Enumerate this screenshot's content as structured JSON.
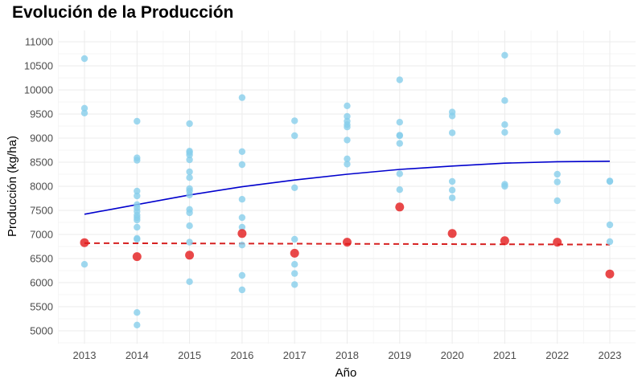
{
  "chart_data": {
    "type": "scatter",
    "title": "Evolución de la Producción",
    "xlabel": "Año",
    "ylabel": "Producción (kg/ha)",
    "xlim": [
      2012.5,
      2023.5
    ],
    "ylim": [
      4700,
      11250
    ],
    "x_ticks": [
      "2013",
      "2014",
      "2015",
      "2016",
      "2017",
      "2018",
      "2019",
      "2020",
      "2021",
      "2022",
      "2023"
    ],
    "y_ticks": [
      "5000",
      "5500",
      "6000",
      "6500",
      "7000",
      "7500",
      "8000",
      "8500",
      "9000",
      "9500",
      "10000",
      "10500",
      "11000"
    ],
    "grid": true,
    "colors": {
      "points": "#87ceeb",
      "highlight": "#e41a1c",
      "trend": "#0000cd",
      "highlight_trend": "#d62020"
    },
    "points": [
      {
        "year": 2013,
        "values": [
          10650,
          9620,
          9520,
          6380
        ]
      },
      {
        "year": 2014,
        "values": [
          9350,
          8590,
          8540,
          7900,
          7800,
          7620,
          7550,
          7480,
          7400,
          7350,
          7300,
          7150,
          6920,
          6900,
          5380,
          5120
        ]
      },
      {
        "year": 2015,
        "values": [
          9300,
          8730,
          8700,
          8650,
          8550,
          8300,
          8180,
          7950,
          7900,
          7820,
          7520,
          7450,
          7180,
          6840,
          6020
        ]
      },
      {
        "year": 2016,
        "values": [
          9840,
          8720,
          8450,
          7730,
          7350,
          7150,
          6780,
          6150,
          5850
        ]
      },
      {
        "year": 2017,
        "values": [
          9360,
          9050,
          7970,
          6900,
          6380,
          6190,
          5960
        ]
      },
      {
        "year": 2018,
        "values": [
          9670,
          9450,
          9350,
          9280,
          9230,
          8960,
          8570,
          8460
        ]
      },
      {
        "year": 2019,
        "values": [
          10210,
          9330,
          9060,
          9050,
          8890,
          8260,
          7930
        ]
      },
      {
        "year": 2020,
        "values": [
          9540,
          9460,
          9110,
          8100,
          7920,
          7760
        ]
      },
      {
        "year": 2021,
        "values": [
          10720,
          9780,
          9280,
          9120,
          8040,
          8000
        ]
      },
      {
        "year": 2022,
        "values": [
          9130,
          8250,
          8090,
          7700
        ]
      },
      {
        "year": 2023,
        "values": [
          8110,
          8100,
          7200,
          6850
        ]
      }
    ],
    "highlight_points": [
      {
        "year": 2013,
        "value": 6830
      },
      {
        "year": 2014,
        "value": 6540
      },
      {
        "year": 2015,
        "value": 6570
      },
      {
        "year": 2016,
        "value": 7020
      },
      {
        "year": 2017,
        "value": 6610
      },
      {
        "year": 2018,
        "value": 6840
      },
      {
        "year": 2019,
        "value": 7570
      },
      {
        "year": 2020,
        "value": 7020
      },
      {
        "year": 2021,
        "value": 6870
      },
      {
        "year": 2022,
        "value": 6840
      },
      {
        "year": 2023,
        "value": 6180
      }
    ],
    "trend_line": {
      "style": "solid",
      "x": [
        2013,
        2014,
        2015,
        2016,
        2017,
        2018,
        2019,
        2020,
        2021,
        2022,
        2023
      ],
      "y": [
        7420,
        7620,
        7820,
        7990,
        8130,
        8250,
        8350,
        8420,
        8480,
        8510,
        8520
      ]
    },
    "highlight_trend_line": {
      "style": "dashed",
      "x": [
        2013,
        2023
      ],
      "y": [
        6820,
        6790
      ]
    }
  }
}
